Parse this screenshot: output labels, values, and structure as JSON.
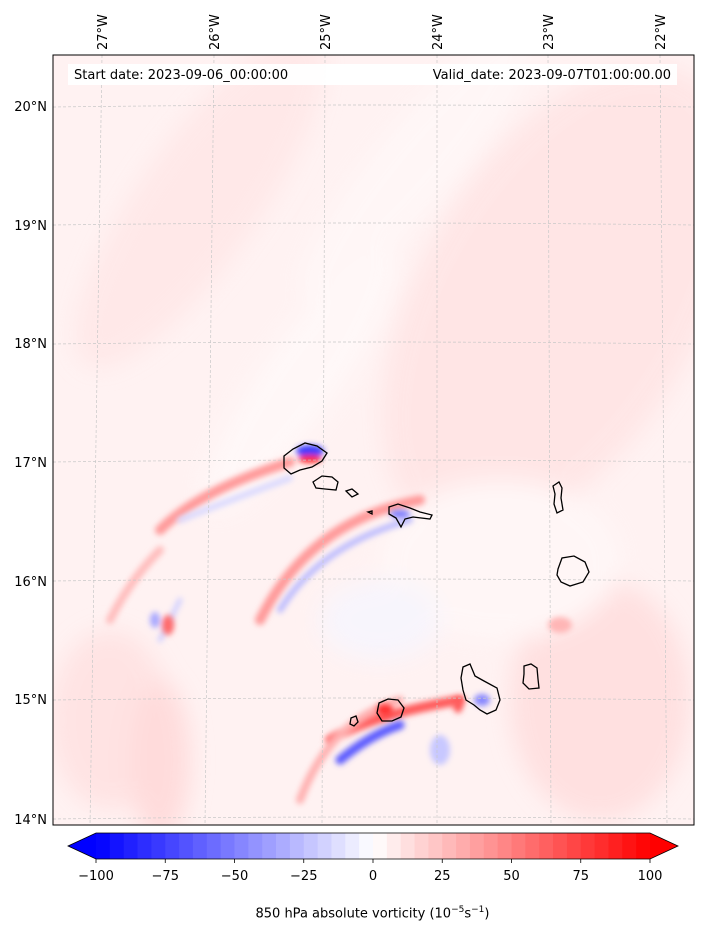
{
  "header": {
    "start_date": "Start date: 2023-09-06_00:00:00",
    "valid_date": "Valid_date: 2023-09-07T01:00:00.00"
  },
  "map": {
    "lon_labels": [
      "27°W",
      "26°W",
      "25°W",
      "24°W",
      "23°W",
      "22°W"
    ],
    "lat_labels": [
      "20°N",
      "19°N",
      "18°N",
      "17°N",
      "16°N",
      "15°N",
      "14°N"
    ],
    "background_color": "#fff2f2",
    "colors": {
      "positive": "#ff0000",
      "negative": "#0000ff"
    }
  },
  "colorbar": {
    "tick_labels": [
      "−100",
      "−75",
      "−50",
      "−25",
      "0",
      "25",
      "50",
      "75",
      "100"
    ],
    "title_prefix": "850 hPa absolute vorticity (10",
    "title_exp1": "−5",
    "title_mid": "s",
    "title_exp2": "−1",
    "title_suffix": ")",
    "colormap": "bwr",
    "range": [
      -100,
      100
    ],
    "extend": "both"
  }
}
